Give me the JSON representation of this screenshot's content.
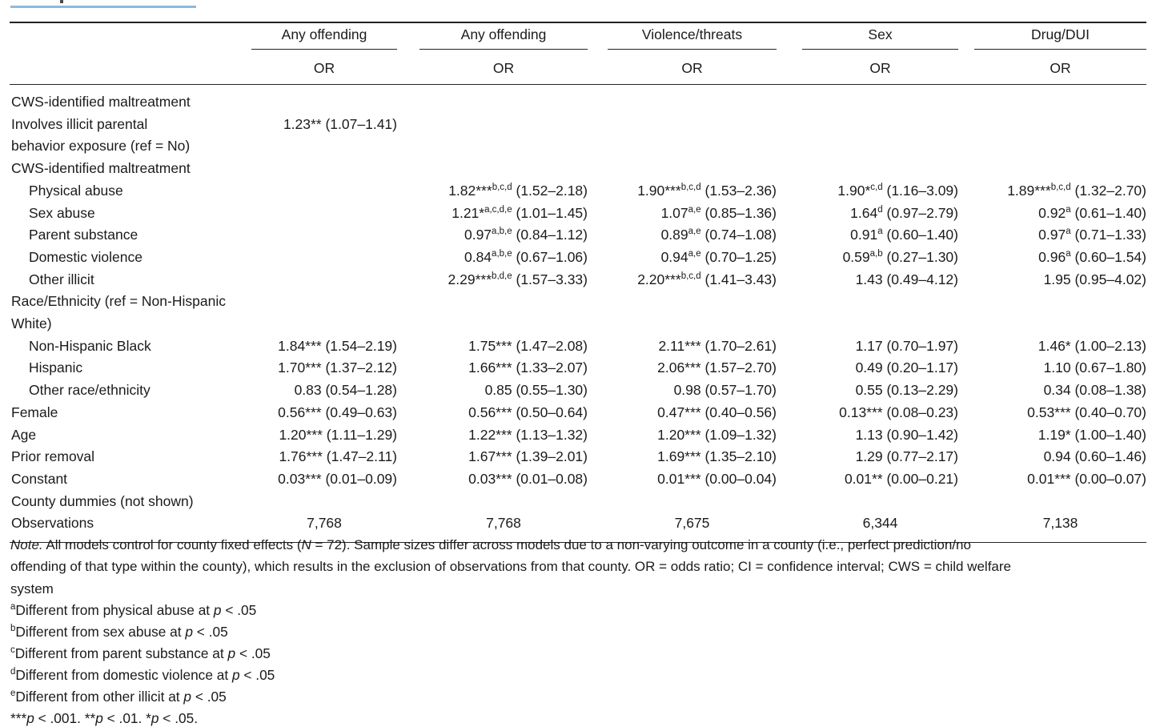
{
  "table": {
    "col_groups": [
      "Any offending",
      "Any offending",
      "Violence/threats",
      "Sex",
      "Drug/DUI"
    ],
    "sub_header": "OR",
    "rows": [
      {
        "label": "CWS-identified maltreatment",
        "indent": false,
        "values": [
          "",
          "",
          "",
          "",
          ""
        ]
      },
      {
        "label": "Involves illicit parental\nbehavior exposure (ref = No)",
        "indent": false,
        "values": [
          "1.23** (1.07–1.41)",
          "",
          "",
          "",
          ""
        ]
      },
      {
        "label": "CWS-identified maltreatment",
        "indent": false,
        "values": [
          "",
          "",
          "",
          "",
          ""
        ]
      },
      {
        "label": "Physical abuse",
        "indent": true,
        "values": [
          "",
          "1.82***^b,c,d^ (1.52–2.18)",
          "1.90***^b,c,d^ (1.53–2.36)",
          "1.90*^c,d^ (1.16–3.09)",
          "1.89***^b,c,d^ (1.32–2.70)"
        ]
      },
      {
        "label": "Sex abuse",
        "indent": true,
        "values": [
          "",
          "1.21*^a,c,d,e^ (1.01–1.45)",
          "1.07^a,e^ (0.85–1.36)",
          "1.64^d^ (0.97–2.79)",
          "0.92^a^ (0.61–1.40)"
        ]
      },
      {
        "label": "Parent substance",
        "indent": true,
        "values": [
          "",
          "0.97^a,b,e^ (0.84–1.12)",
          "0.89^a,e^ (0.74–1.08)",
          "0.91^a^ (0.60–1.40)",
          "0.97^a^ (0.71–1.33)"
        ]
      },
      {
        "label": "Domestic violence",
        "indent": true,
        "values": [
          "",
          "0.84^a,b,e^ (0.67–1.06)",
          "0.94^a,e^ (0.70–1.25)",
          "0.59^a,b^ (0.27–1.30)",
          "0.96^a^ (0.60–1.54)"
        ]
      },
      {
        "label": "Other illicit",
        "indent": true,
        "values": [
          "",
          "2.29***^b,d,e^ (1.57–3.33)",
          "2.20***^b,c,d^ (1.41–3.43)",
          "1.43 (0.49–4.12)",
          "1.95 (0.95–4.02)"
        ]
      },
      {
        "label": "Race/Ethnicity (ref = Non-Hispanic White)",
        "indent": false,
        "values": [
          "",
          "",
          "",
          "",
          ""
        ]
      },
      {
        "label": "Non-Hispanic Black",
        "indent": true,
        "values": [
          "1.84*** (1.54–2.19)",
          "1.75*** (1.47–2.08)",
          "2.11*** (1.70–2.61)",
          "1.17 (0.70–1.97)",
          "1.46* (1.00–2.13)"
        ]
      },
      {
        "label": "Hispanic",
        "indent": true,
        "values": [
          "1.70*** (1.37–2.12)",
          "1.66*** (1.33–2.07)",
          "2.06*** (1.57–2.70)",
          "0.49 (0.20–1.17)",
          "1.10 (0.67–1.80)"
        ]
      },
      {
        "label": "Other race/ethnicity",
        "indent": true,
        "values": [
          "0.83 (0.54–1.28)",
          "0.85 (0.55–1.30)",
          "0.98 (0.57–1.70)",
          "0.55 (0.13–2.29)",
          "0.34 (0.08–1.38)"
        ]
      },
      {
        "label": "Female",
        "indent": false,
        "values": [
          "0.56*** (0.49–0.63)",
          "0.56*** (0.50–0.64)",
          "0.47*** (0.40–0.56)",
          "0.13*** (0.08–0.23)",
          "0.53*** (0.40–0.70)"
        ]
      },
      {
        "label": "Age",
        "indent": false,
        "values": [
          "1.20*** (1.11–1.29)",
          "1.22*** (1.13–1.32)",
          "1.20*** (1.09–1.32)",
          "1.13 (0.90–1.42)",
          "1.19* (1.00–1.40)"
        ]
      },
      {
        "label": "Prior removal",
        "indent": false,
        "values": [
          "1.76*** (1.47–2.11)",
          "1.67*** (1.39–2.01)",
          "1.69*** (1.35–2.10)",
          "1.29 (0.77–2.17)",
          "0.94 (0.60–1.46)"
        ]
      },
      {
        "label": "Constant",
        "indent": false,
        "values": [
          "0.03*** (0.01–0.09)",
          "0.03*** (0.01–0.08)",
          "0.01*** (0.00–0.04)",
          "0.01** (0.00–0.21)",
          "0.01*** (0.00–0.07)"
        ]
      },
      {
        "label": "County dummies (not shown)",
        "indent": false,
        "values": [
          "",
          "",
          "",
          "",
          ""
        ]
      },
      {
        "label": "Observations",
        "indent": false,
        "align": "center",
        "values": [
          "7,768",
          "7,768",
          "7,675",
          "6,344",
          "7,138"
        ]
      }
    ]
  },
  "notes": {
    "note": "~Note.~ All models control for county fixed effects (~N~ = 72). Sample sizes differ across models due to a non-varying outcome in a county (i.e., perfect prediction/no\noffending of that type within the county), which results in the exclusion of observations from that county. OR = odds ratio; CI = confidence interval; CWS = child welfare\nsystem",
    "footnotes": [
      "^a^Different from physical abuse at ~p~ < .05",
      "^b^Different from sex abuse at ~p~ < .05",
      "^c^Different from parent substance at ~p~ < .05",
      "^d^Different from domestic violence at ~p~ < .05",
      "^e^Different from other illicit at ~p~ < .05",
      "***~p~ < .001. **~p~ < .01. *~p~ < .05."
    ]
  }
}
